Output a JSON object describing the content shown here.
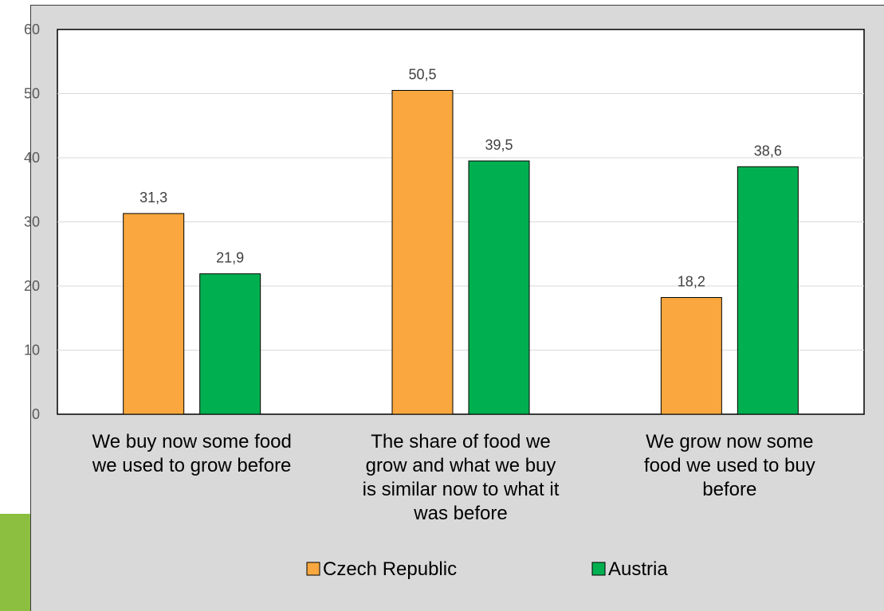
{
  "chart_data": {
    "type": "bar",
    "categories": [
      [
        "We buy now some food",
        "we used to grow before"
      ],
      [
        "The share of food we",
        "grow and what we buy",
        "is similar now to what it",
        "was before"
      ],
      [
        "We grow now some",
        "food we used to buy",
        "before"
      ]
    ],
    "series": [
      {
        "name": "Czech Republic",
        "values": [
          31.3,
          50.5,
          18.2
        ],
        "color": "#f9a73e",
        "labels": [
          "31,3",
          "50,5",
          "18,2"
        ]
      },
      {
        "name": "Austria",
        "values": [
          21.9,
          39.5,
          38.6
        ],
        "color": "#00b050",
        "labels": [
          "21,9",
          "39,5",
          "38,6"
        ]
      }
    ],
    "ylim": [
      0,
      60
    ],
    "yticks": [
      0,
      10,
      20,
      30,
      40,
      50,
      60
    ],
    "grid": true,
    "legend": "bottom"
  }
}
